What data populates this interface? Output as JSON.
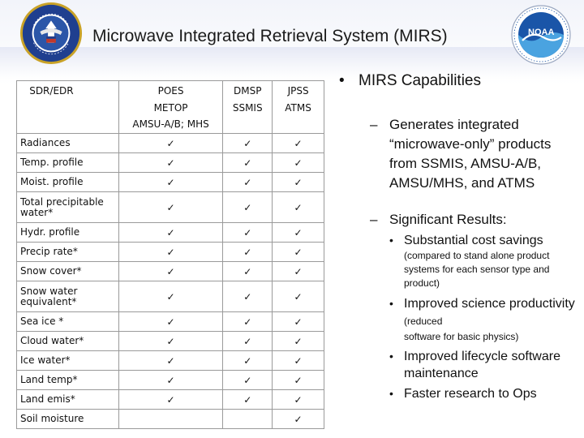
{
  "slide": {
    "title": "Microwave Integrated Retrieval System (MIRS)"
  },
  "logos": {
    "left": {
      "name": "department-of-commerce-seal",
      "text_top": "DEPARTMENT OF COMMERCE",
      "text_bottom": "UNITED STATES OF AMERICA",
      "colors": {
        "blue": "#1f3f8f",
        "gold": "#c9a227"
      }
    },
    "right": {
      "name": "noaa-logo",
      "text": "NOAA",
      "colors": {
        "blue": "#1a55a8",
        "light": "#4aa3e0"
      }
    }
  },
  "table": {
    "headers": [
      [
        "SDR/EDR"
      ],
      [
        "POES",
        "METOP",
        "AMSU-A/B; MHS"
      ],
      [
        "DMSP",
        "SSMIS"
      ],
      [
        "JPSS",
        "ATMS"
      ]
    ],
    "check_glyph": "✓",
    "rows": [
      {
        "label": "Radiances",
        "checks": [
          true,
          true,
          true
        ]
      },
      {
        "label": "Temp. profile",
        "checks": [
          true,
          true,
          true
        ]
      },
      {
        "label": "Moist. profile",
        "checks": [
          true,
          true,
          true
        ]
      },
      {
        "label": "Total precipitable water*",
        "checks": [
          true,
          true,
          true
        ]
      },
      {
        "label": "Hydr. profile",
        "checks": [
          true,
          true,
          true
        ]
      },
      {
        "label": "Precip rate*",
        "checks": [
          true,
          true,
          true
        ]
      },
      {
        "label": "Snow cover*",
        "checks": [
          true,
          true,
          true
        ]
      },
      {
        "label": "Snow water equivalent*",
        "checks": [
          true,
          true,
          true
        ]
      },
      {
        "label": "Sea ice *",
        "checks": [
          true,
          true,
          true
        ]
      },
      {
        "label": "Cloud water*",
        "checks": [
          true,
          true,
          true
        ]
      },
      {
        "label": "Ice water*",
        "checks": [
          true,
          true,
          true
        ]
      },
      {
        "label": "Land temp*",
        "checks": [
          true,
          true,
          true
        ]
      },
      {
        "label": "Land emis*",
        "checks": [
          true,
          true,
          true
        ]
      },
      {
        "label": "Soil moisture",
        "checks": [
          false,
          false,
          true
        ]
      }
    ]
  },
  "bullets": {
    "main": "MIRS Capabilities",
    "bullet_glyph": "•",
    "dash_glyph": "–",
    "sub1": "Generates integrated “microwave-only” products from SSMIS, AMSU-A/B, AMSU/MHS, and ATMS",
    "sub2": "Significant Results:",
    "results": [
      {
        "text": "Substantial cost savings",
        "note": "(compared to stand alone product systems for each sensor type and product)",
        "note_inline": ""
      },
      {
        "text": "Improved science productivity",
        "note_inline": "(reduced",
        "note": "software for basic physics)"
      },
      {
        "text": "Improved lifecycle software maintenance",
        "note": "",
        "note_inline": ""
      },
      {
        "text": "Faster research to Ops",
        "note": "",
        "note_inline": ""
      }
    ]
  }
}
